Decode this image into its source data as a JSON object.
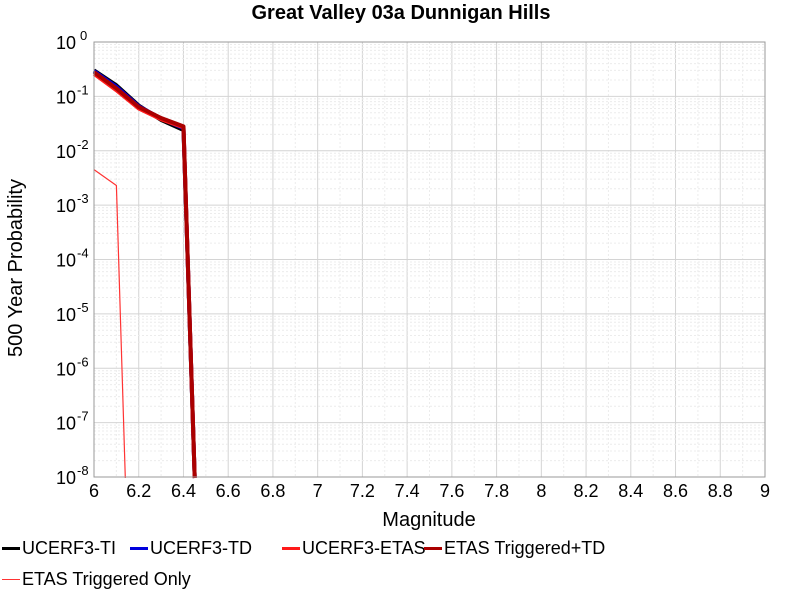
{
  "chart_data": {
    "type": "line",
    "title": "Great Valley 03a Dunnigan Hills",
    "xlabel": "Magnitude",
    "ylabel": "500 Year Probability",
    "xlim": [
      6,
      9
    ],
    "ylim": [
      1e-08,
      1
    ],
    "yscale": "log",
    "x_ticks": [
      "6",
      "6.2",
      "6.4",
      "6.6",
      "6.8",
      "7",
      "7.2",
      "7.4",
      "7.6",
      "7.8",
      "8",
      "8.2",
      "8.4",
      "8.6",
      "8.8",
      "9"
    ],
    "y_tick_exponents": [
      "0",
      "-1",
      "-2",
      "-3",
      "-4",
      "-5",
      "-6",
      "-7",
      "-8"
    ],
    "grid": true,
    "legend_position": "bottom",
    "series": [
      {
        "name": "UCERF3-TI",
        "color": "#000000",
        "width": 4,
        "points": [
          [
            6.0,
            0.3
          ],
          [
            6.1,
            0.16
          ],
          [
            6.2,
            0.068
          ],
          [
            6.3,
            0.037
          ],
          [
            6.4,
            0.024
          ],
          [
            6.45,
            5e-09
          ]
        ]
      },
      {
        "name": "UCERF3-TD",
        "color": "#0000dd",
        "width": 4,
        "points": [
          [
            6.0,
            0.29
          ],
          [
            6.1,
            0.15
          ],
          [
            6.2,
            0.066
          ],
          [
            6.3,
            0.039
          ],
          [
            6.4,
            0.026
          ],
          [
            6.45,
            5e-09
          ]
        ]
      },
      {
        "name": "UCERF3-ETAS",
        "color": "#ff1a1a",
        "width": 4,
        "points": [
          [
            6.0,
            0.26
          ],
          [
            6.1,
            0.13
          ],
          [
            6.2,
            0.06
          ],
          [
            6.3,
            0.038
          ],
          [
            6.4,
            0.027
          ],
          [
            6.45,
            5e-09
          ]
        ]
      },
      {
        "name": "ETAS Triggered+TD",
        "color": "#aa0000",
        "width": 4,
        "points": [
          [
            6.0,
            0.28
          ],
          [
            6.1,
            0.14
          ],
          [
            6.2,
            0.064
          ],
          [
            6.3,
            0.04
          ],
          [
            6.4,
            0.028
          ],
          [
            6.45,
            5e-09
          ]
        ]
      },
      {
        "name": "ETAS Triggered Only",
        "color": "#ff3333",
        "width": 1.2,
        "points": [
          [
            6.0,
            0.0045
          ],
          [
            6.1,
            0.0023
          ],
          [
            6.14,
            5e-09
          ]
        ]
      }
    ]
  }
}
